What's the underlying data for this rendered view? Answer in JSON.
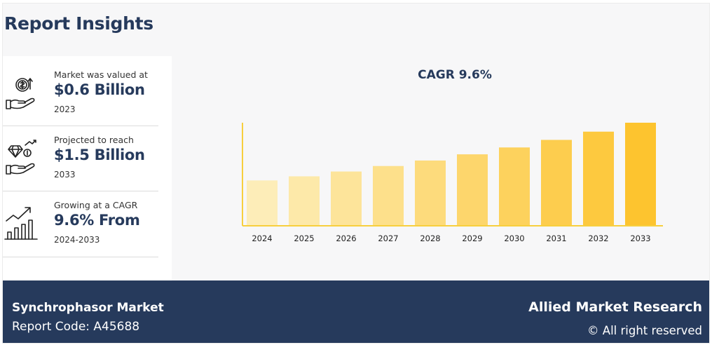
{
  "title": "Report Insights",
  "stats": [
    {
      "label": "Market was valued at",
      "value": "$0.6 Billion",
      "year": "2023"
    },
    {
      "label": "Projected to reach",
      "value": "$1.5 Billion",
      "year": "2033"
    },
    {
      "label": "Growing at a CAGR",
      "value": "9.6% From",
      "year": "2024-2033"
    }
  ],
  "chart_data": {
    "type": "bar",
    "title": "CAGR 9.6%",
    "categories": [
      "2024",
      "2025",
      "2026",
      "2027",
      "2028",
      "2029",
      "2030",
      "2031",
      "2032",
      "2033"
    ],
    "values": [
      0.66,
      0.72,
      0.79,
      0.87,
      0.95,
      1.04,
      1.14,
      1.25,
      1.37,
      1.5
    ],
    "xlabel": "",
    "ylabel": "",
    "colors": [
      "#fdedb8",
      "#fde9a9",
      "#fde49a",
      "#fde08b",
      "#fddb7c",
      "#fdd66c",
      "#fdd25d",
      "#fdcd4e",
      "#fdc93f",
      "#fdc42f"
    ],
    "axis_color": "#f7cf3e"
  },
  "footer": {
    "market": "Synchrophasor Market",
    "report_code": "Report Code: A45688",
    "brand": "Allied Market Research",
    "rights": "© All right reserved"
  }
}
